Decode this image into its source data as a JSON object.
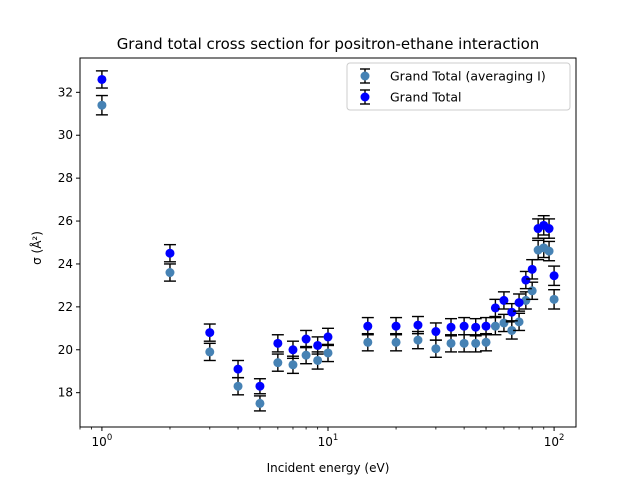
{
  "chart_data": {
    "type": "scatter",
    "title": "Grand total cross section for positron-ethane interaction",
    "xlabel": "Incident energy (eV)",
    "ylabel": "σ (Å²)",
    "xscale": "log",
    "xlim": [
      0.8,
      125
    ],
    "ylim": [
      16.4,
      33.6
    ],
    "xticks": [
      {
        "value": 1,
        "base": "10",
        "exp": "0"
      },
      {
        "value": 10,
        "base": "10",
        "exp": "1"
      },
      {
        "value": 100,
        "base": "10",
        "exp": "2"
      }
    ],
    "yticks": [
      18,
      20,
      22,
      24,
      26,
      28,
      30,
      32
    ],
    "legend": {
      "position": "upper right"
    },
    "series": [
      {
        "name": "Grand Total (averaging I)",
        "color": "#4682b4",
        "x": [
          1,
          2,
          3,
          4,
          5,
          6,
          7,
          8,
          9,
          10,
          15,
          20,
          25,
          30,
          35,
          40,
          45,
          50,
          55,
          60,
          65,
          70,
          75,
          80,
          85,
          90,
          95,
          100
        ],
        "y": [
          31.4,
          23.6,
          19.9,
          18.3,
          17.5,
          19.4,
          19.3,
          19.75,
          19.5,
          19.85,
          20.35,
          20.35,
          20.45,
          20.05,
          20.3,
          20.3,
          20.3,
          20.35,
          21.1,
          21.25,
          20.9,
          21.3,
          22.3,
          22.75,
          24.65,
          24.75,
          24.6,
          22.35
        ],
        "err": [
          0.45,
          0.4,
          0.4,
          0.4,
          0.35,
          0.4,
          0.4,
          0.4,
          0.4,
          0.4,
          0.4,
          0.4,
          0.4,
          0.4,
          0.4,
          0.4,
          0.4,
          0.4,
          0.4,
          0.4,
          0.4,
          0.4,
          0.4,
          0.4,
          0.45,
          0.45,
          0.45,
          0.45
        ]
      },
      {
        "name": "Grand Total",
        "color": "#0000ff",
        "x": [
          1,
          2,
          3,
          4,
          5,
          6,
          7,
          8,
          9,
          10,
          15,
          20,
          25,
          30,
          35,
          40,
          45,
          50,
          55,
          60,
          65,
          70,
          75,
          80,
          85,
          90,
          95,
          100
        ],
        "y": [
          32.6,
          24.5,
          20.8,
          19.1,
          18.3,
          20.3,
          20.0,
          20.5,
          20.2,
          20.6,
          21.1,
          21.1,
          21.15,
          20.85,
          21.05,
          21.1,
          21.05,
          21.1,
          21.95,
          22.3,
          21.75,
          22.2,
          23.25,
          23.75,
          25.65,
          25.8,
          25.65,
          23.45
        ],
        "err": [
          0.4,
          0.4,
          0.4,
          0.4,
          0.35,
          0.4,
          0.4,
          0.4,
          0.4,
          0.4,
          0.4,
          0.4,
          0.4,
          0.4,
          0.4,
          0.4,
          0.4,
          0.4,
          0.4,
          0.4,
          0.4,
          0.4,
          0.4,
          0.45,
          0.45,
          0.45,
          0.45,
          0.45
        ]
      }
    ]
  }
}
